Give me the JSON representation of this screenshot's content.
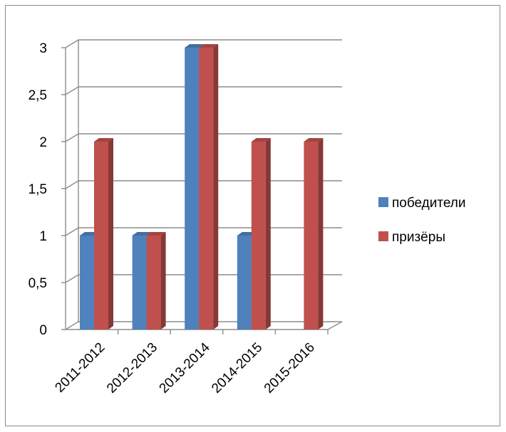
{
  "chart_data": {
    "type": "bar",
    "categories": [
      "2011-2012",
      "2012-2013",
      "2013-2014",
      "2014-2015",
      "2015-2016"
    ],
    "series": [
      {
        "name": "победители",
        "values": [
          1,
          1,
          3,
          1,
          0
        ],
        "color": "#4f81bd"
      },
      {
        "name": "призёры",
        "values": [
          2,
          1,
          3,
          2,
          2
        ],
        "color": "#c0504d"
      }
    ],
    "y_ticks": [
      "0",
      "0,5",
      "1",
      "1,5",
      "2",
      "2,5",
      "3"
    ],
    "ylim": [
      0,
      3
    ],
    "grid": true,
    "legend_position": "right",
    "title": "",
    "xlabel": "",
    "ylabel": ""
  }
}
